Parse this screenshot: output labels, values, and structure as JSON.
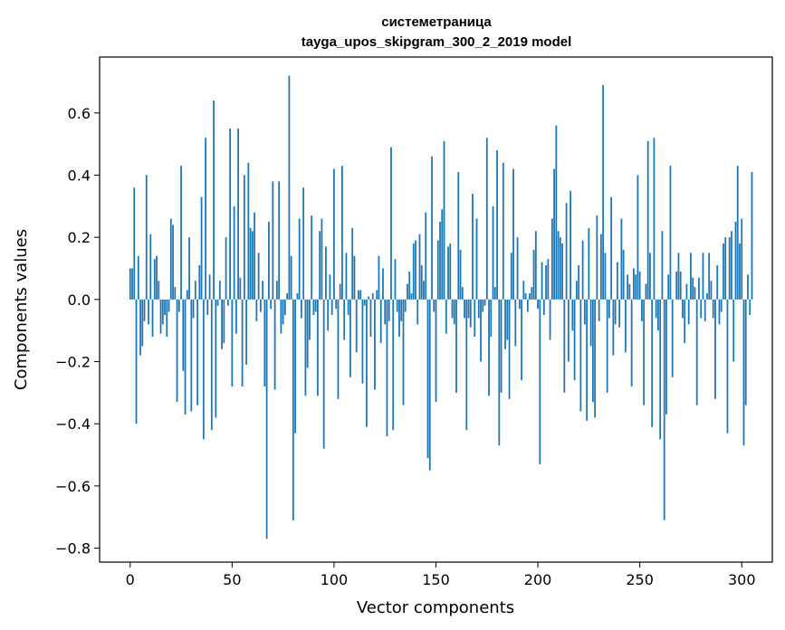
{
  "chart_data": {
    "type": "bar",
    "title_line1": "системетраница",
    "title_line2": "tayga_upos_skipgram_300_2_2019 model",
    "xlabel": "Vector components",
    "ylabel": "Components values",
    "xlim": [
      -15,
      315
    ],
    "ylim": [
      -0.845,
      0.78
    ],
    "x_ticks": [
      0,
      50,
      100,
      150,
      200,
      250,
      300
    ],
    "x_tick_labels": [
      "0",
      "50",
      "100",
      "150",
      "200",
      "250",
      "300"
    ],
    "y_ticks": [
      0.6,
      0.4,
      0.2,
      0.0,
      -0.2,
      -0.4,
      -0.6,
      -0.8
    ],
    "y_tick_labels": [
      "0.6",
      "0.4",
      "0.2",
      "0.0",
      "−0.2",
      "−0.4",
      "−0.6",
      "−0.8"
    ],
    "bar_color": "#1f77b4",
    "values": [
      0.1,
      0.1,
      0.36,
      -0.4,
      0.14,
      -0.18,
      -0.15,
      -0.07,
      0.4,
      -0.08,
      0.21,
      -0.12,
      0.13,
      0.14,
      0.06,
      -0.11,
      -0.08,
      -0.05,
      -0.12,
      -0.04,
      0.26,
      0.24,
      0.04,
      -0.33,
      -0.04,
      0.43,
      -0.23,
      -0.37,
      0.03,
      0.2,
      -0.36,
      -0.06,
      0.06,
      -0.34,
      0.11,
      0.33,
      -0.45,
      0.52,
      -0.05,
      0.08,
      -0.42,
      0.64,
      -0.38,
      -0.02,
      0.06,
      -0.16,
      -0.14,
      0.2,
      -0.02,
      0.55,
      -0.28,
      0.3,
      -0.11,
      0.55,
      0.07,
      -0.28,
      0.4,
      -0.21,
      0.44,
      0.23,
      0.22,
      0.28,
      -0.07,
      0.15,
      -0.04,
      0.06,
      -0.28,
      -0.77,
      0.25,
      -0.03,
      0.38,
      -0.29,
      0.06,
      0.38,
      -0.11,
      -0.08,
      -0.05,
      0.02,
      0.72,
      0.14,
      -0.71,
      -0.43,
      0.02,
      0.26,
      -0.06,
      0.36,
      -0.31,
      -0.22,
      -0.13,
      0.27,
      -0.05,
      -0.04,
      -0.31,
      0.22,
      0.26,
      -0.48,
      0.17,
      -0.1,
      0.08,
      -0.05,
      0.42,
      -0.03,
      -0.32,
      0.05,
      0.43,
      -0.13,
      0.15,
      -0.05,
      -0.25,
      0.23,
      0.14,
      -0.17,
      0.03,
      0.03,
      -0.27,
      -0.02,
      -0.41,
      0.01,
      -0.12,
      0.02,
      -0.29,
      0.03,
      0.14,
      -0.14,
      0.1,
      -0.08,
      -0.44,
      -0.07,
      0.49,
      -0.42,
      0.13,
      -0.04,
      -0.12,
      -0.07,
      -0.34,
      -0.04,
      0.05,
      0.09,
      0.02,
      0.18,
      0.19,
      -0.08,
      0.21,
      0.11,
      0.06,
      0.28,
      -0.51,
      -0.55,
      0.46,
      -0.04,
      -0.33,
      0.19,
      0.25,
      0.29,
      0.51,
      -0.11,
      0.17,
      0.18,
      -0.06,
      -0.08,
      -0.3,
      0.41,
      0.16,
      0.04,
      -0.06,
      -0.42,
      -0.06,
      -0.09,
      0.34,
      -0.12,
      0.26,
      -0.06,
      -0.2,
      -0.04,
      -0.02,
      0.52,
      -0.31,
      -0.12,
      0.3,
      0.04,
      0.48,
      -0.47,
      -0.3,
      0.44,
      -0.16,
      -0.13,
      -0.32,
      0.15,
      0.42,
      -0.15,
      0.2,
      -0.03,
      -0.26,
      0.06,
      0.02,
      -0.04,
      0.02,
      0.04,
      0.16,
      0.22,
      -0.03,
      -0.53,
      0.12,
      -0.05,
      0.11,
      0.13,
      -0.13,
      0.26,
      0.42,
      0.56,
      0.22,
      0.2,
      0.18,
      -0.3,
      0.31,
      -0.2,
      0.35,
      -0.1,
      -0.26,
      0.06,
      0.11,
      -0.36,
      0.19,
      -0.08,
      -0.39,
      0.23,
      -0.15,
      -0.33,
      -0.38,
      0.27,
      -0.07,
      0.21,
      0.69,
      0.15,
      -0.3,
      -0.06,
      0.33,
      -0.18,
      -0.08,
      0.12,
      -0.09,
      0.26,
      0.16,
      -0.17,
      0.08,
      0.05,
      -0.28,
      0.1,
      0.08,
      0.4,
      0.09,
      -0.07,
      -0.34,
      0.05,
      0.51,
      0.15,
      -0.41,
      0.52,
      -0.06,
      -0.1,
      -0.45,
      0.22,
      -0.71,
      -0.37,
      0.08,
      0.43,
      -0.25,
      0.0,
      0.09,
      0.15,
      0.09,
      -0.06,
      -0.14,
      0.05,
      -0.08,
      0.15,
      0.07,
      0.04,
      -0.34,
      0.07,
      -0.06,
      0.15,
      -0.07,
      0.02,
      0.15,
      0.06,
      -0.06,
      -0.32,
      0.11,
      -0.08,
      -0.04,
      0.18,
      0.2,
      -0.43,
      0.2,
      0.22,
      -0.2,
      0.25,
      0.43,
      0.18,
      0.26,
      -0.47,
      -0.34,
      0.08,
      -0.05,
      0.41
    ]
  }
}
